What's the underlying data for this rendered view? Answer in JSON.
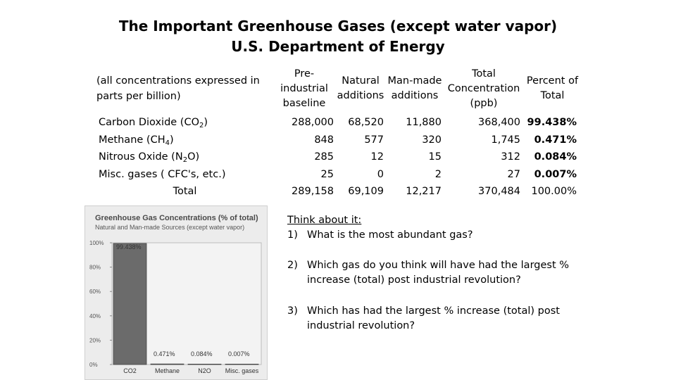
{
  "title_line1": "The Important Greenhouse Gases (except water vapor)",
  "title_line2": "U.S. Department of Energy",
  "note": "(all concentrations expressed in parts per billion)",
  "headers": {
    "pre_l1": "Pre-",
    "pre_l2": "industrial",
    "pre_l3": "baseline",
    "nat_l1": "Natural",
    "nat_l2": "additions",
    "man_l1": "Man-made",
    "man_l2": "additions",
    "tot_l1": "Total",
    "tot_l2": "Concentration",
    "tot_l3": "(ppb)",
    "pct_l1": "Percent of",
    "pct_l2": "Total"
  },
  "rows": [
    {
      "label_pre": "Carbon Dioxide (CO",
      "sub": "2",
      "label_post": ")",
      "baseline": "288,000",
      "natural": "68,520",
      "manmade": "11,880",
      "total": "368,400",
      "percent": "99.438%"
    },
    {
      "label_pre": "Methane (CH",
      "sub": "4",
      "label_post": ")",
      "baseline": "848",
      "natural": "577",
      "manmade": "320",
      "total": "1,745",
      "percent": "0.471%"
    },
    {
      "label_pre": "Nitrous Oxide (N",
      "sub": "2",
      "label_post": "O)",
      "baseline": "285",
      "natural": "12",
      "manmade": "15",
      "total": "312",
      "percent": "0.084%"
    },
    {
      "label_pre": "Misc. gases ( CFC's, etc.)",
      "sub": "",
      "label_post": "",
      "baseline": "25",
      "natural": "0",
      "manmade": "2",
      "total": "27",
      "percent": "0.007%"
    },
    {
      "label_pre": "Total",
      "sub": "",
      "label_post": "",
      "baseline": "289,158",
      "natural": "69,109",
      "manmade": "12,217",
      "total": "370,484",
      "percent": "100.00%"
    }
  ],
  "questions": {
    "heading": "Think about it:",
    "q1_num": "1)",
    "q1": "What is the most abundant gas?",
    "q2_num": "2)",
    "q2": "Which gas do you think will have had the largest % increase (total) post industrial revolution?",
    "q3_num": "3)",
    "q3": "Which has had the largest % increase (total) post industrial revolution?"
  },
  "chart_data": {
    "type": "bar",
    "title": "Greenhouse Gas Concentrations (% of total)",
    "subtitle": "Natural and Man-made Sources (except water vapor)",
    "categories": [
      "CO2",
      "Methane",
      "N2O",
      "Misc. gases"
    ],
    "values": [
      99.438,
      0.471,
      0.084,
      0.007
    ],
    "data_labels": [
      "99.438%",
      "0.471%",
      "0.084%",
      "0.007%"
    ],
    "ylim": [
      0,
      100
    ],
    "yticks": [
      "0%",
      "20%",
      "40%",
      "60%",
      "80%",
      "100%"
    ],
    "bar_color": "#6b6b6b",
    "grid": false
  }
}
